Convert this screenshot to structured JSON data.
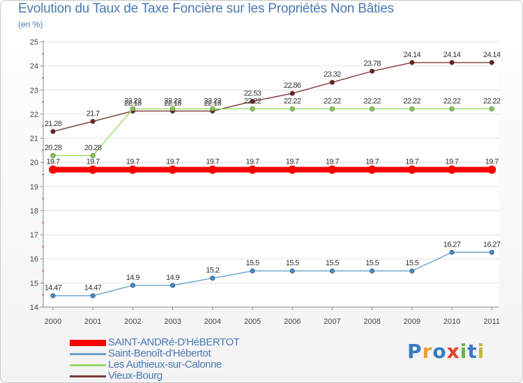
{
  "title": "Evolution du Taux de Taxe Foncière sur les Propriétés Non Bâties",
  "unit_label": "(en %)",
  "brand": [
    "P",
    "r",
    "o",
    "x",
    "i",
    "t",
    "i"
  ],
  "brand_colors": [
    "#3a7ac0",
    "#e8a23a",
    "#3a7ac0",
    "#e8402a",
    "#6ab04c",
    "#3a7ac0",
    "#c7b63a"
  ],
  "chart_data": {
    "type": "line",
    "title": "Evolution du Taux de Taxe Foncière sur les Propriétés Non Bâties",
    "ylabel": "(en %)",
    "xlabel": "",
    "ylim": [
      14,
      25
    ],
    "yticks": [
      "14",
      "15",
      "16",
      "17",
      "18",
      "19",
      "20",
      "21",
      "22",
      "23",
      "24",
      "25"
    ],
    "categories": [
      "2000",
      "2001",
      "2002",
      "2003",
      "2004",
      "2005",
      "2006",
      "2007",
      "2008",
      "2009",
      "2010",
      "2011"
    ],
    "series": [
      {
        "name": "SAINT-ANDRé-D'HéBERTOT",
        "color": "#ff0000",
        "values": [
          19.7,
          19.7,
          19.7,
          19.7,
          19.7,
          19.7,
          19.7,
          19.7,
          19.7,
          19.7,
          19.7,
          19.7
        ],
        "labels": [
          "19.7",
          "19.7",
          "19.7",
          "19.7",
          "19.7",
          "19.7",
          "19.7",
          "19.7",
          "19.7",
          "19.7",
          "19.7",
          "19.7"
        ]
      },
      {
        "name": "Saint-Benoît-d'Hébertot",
        "color": "#6aa0cc",
        "marker": "#3f8bcb",
        "values": [
          14.47,
          14.47,
          14.9,
          14.9,
          15.2,
          15.5,
          15.5,
          15.5,
          15.5,
          15.5,
          16.27,
          16.27
        ],
        "labels": [
          "14.47",
          "14.47",
          "14.9",
          "14.9",
          "15.2",
          "15.5",
          "15.5",
          "15.5",
          "15.5",
          "15.5",
          "16.27",
          "16.27"
        ]
      },
      {
        "name": "Les Authieux-sur-Calonne",
        "color": "#99dd66",
        "marker": "#80cc4a",
        "values": [
          20.28,
          20.28,
          22.22,
          22.22,
          22.22,
          22.22,
          22.22,
          22.22,
          22.22,
          22.22,
          22.22,
          22.22
        ],
        "labels": [
          "20.28",
          "20.28",
          "22.22",
          "22.22",
          "22.22",
          "22.22",
          "22.22",
          "22.22",
          "22.22",
          "22.22",
          "22.22",
          "22.22"
        ]
      },
      {
        "name": "Vieux-Bourg",
        "color": "#7a3838",
        "marker": "#6e1f1f",
        "values": [
          21.28,
          21.7,
          22.13,
          22.13,
          22.13,
          22.53,
          22.86,
          23.32,
          23.78,
          24.14,
          24.14,
          24.14
        ],
        "labels": [
          "21.28",
          "21.7",
          "22.13",
          "22.13",
          "22.13",
          "22.53",
          "22.86",
          "23.32",
          "23.78",
          "24.14",
          "24.14",
          "24.14"
        ]
      }
    ]
  }
}
